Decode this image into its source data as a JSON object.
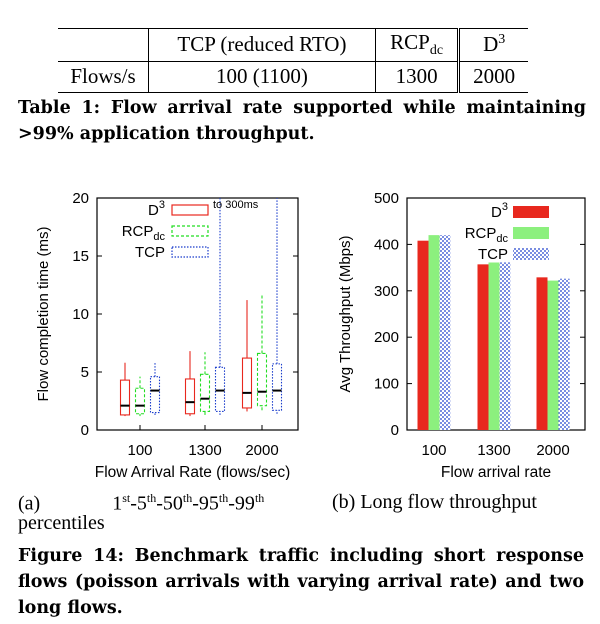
{
  "table": {
    "headers": [
      "",
      "TCP (reduced RTO)",
      "RCP",
      "dc",
      "D",
      "3"
    ],
    "row_label": "Flows/s",
    "values": [
      "100 (1100)",
      "1300",
      "2000"
    ],
    "caption": "Table 1: Flow arrival rate supported while maintaining >99% application throughput."
  },
  "figure_caption": "Figure 14: Benchmark traffic including short response flows (poisson arrivals with varying arrival rate) and two long flows.",
  "subcaption_a": {
    "label": "(a)",
    "p1": "1",
    "s1": "st",
    "p2": "-5",
    "s2": "th",
    "p3": "-50",
    "s3": "th",
    "p4": "-95",
    "s4": "th",
    "p5": "-99",
    "s5": "th",
    "line2": "percentiles"
  },
  "subcaption_b": "(b) Long flow throughput",
  "colors": {
    "d3": "#e8281e",
    "rcp": "#22dd22",
    "tcp": "#1a3ccc",
    "bar_rcp": "#8cf07e",
    "bar_tcp": "#6a86e8"
  },
  "chart_data": [
    {
      "type": "box",
      "xlabel": "Flow Arrival Rate (flows/sec)",
      "ylabel": "Flow completion time (ms)",
      "ylim": [
        0,
        20
      ],
      "yticks": [
        "0",
        "5",
        "10",
        "15",
        "20"
      ],
      "categories": [
        "100",
        "1300",
        "2000"
      ],
      "legend": [
        "D",
        "3",
        "RCP",
        "dc",
        "TCP"
      ],
      "annotation": "to 300ms",
      "series": [
        {
          "name": "D3",
          "color": "#e8281e",
          "boxes": [
            {
              "p1": 1.2,
              "p5": 1.3,
              "p50": 2.1,
              "p95": 4.3,
              "p99": 5.8
            },
            {
              "p1": 1.2,
              "p5": 1.4,
              "p50": 2.4,
              "p95": 4.4,
              "p99": 6.8
            },
            {
              "p1": 1.6,
              "p5": 1.9,
              "p50": 3.2,
              "p95": 6.2,
              "p99": 11.2
            }
          ]
        },
        {
          "name": "RCPdc",
          "color": "#22dd22",
          "boxes": [
            {
              "p1": 1.2,
              "p5": 1.4,
              "p50": 2.1,
              "p95": 3.6,
              "p99": 4.6
            },
            {
              "p1": 1.3,
              "p5": 1.6,
              "p50": 2.7,
              "p95": 4.8,
              "p99": 6.7
            },
            {
              "p1": 1.7,
              "p5": 2.1,
              "p50": 3.3,
              "p95": 6.6,
              "p99": 11.7
            }
          ]
        },
        {
          "name": "TCP",
          "color": "#1a3ccc",
          "boxes": [
            {
              "p1": 1.3,
              "p5": 1.5,
              "p50": 3.4,
              "p95": 4.6,
              "p99": 5.8
            },
            {
              "p1": 1.3,
              "p5": 1.6,
              "p50": 3.4,
              "p95": 5.4,
              "p99": 15.2,
              "to_top": true
            },
            {
              "p1": 1.4,
              "p5": 1.7,
              "p50": 3.4,
              "p95": 5.7,
              "p99": 20,
              "to_top": true
            }
          ]
        }
      ]
    },
    {
      "type": "bar",
      "xlabel": "Flow arrival rate",
      "ylabel": "Avg Throughput (Mbps)",
      "ylim": [
        0,
        500
      ],
      "yticks": [
        "0",
        "100",
        "200",
        "300",
        "400",
        "500"
      ],
      "categories": [
        "100",
        "1300",
        "2000"
      ],
      "legend": [
        "D",
        "3",
        "RCP",
        "dc",
        "TCP"
      ],
      "series": [
        {
          "name": "D3",
          "values": [
            408,
            357,
            329
          ]
        },
        {
          "name": "RCPdc",
          "values": [
            420,
            361,
            322
          ]
        },
        {
          "name": "TCP",
          "values": [
            420,
            361,
            326
          ]
        }
      ]
    }
  ]
}
